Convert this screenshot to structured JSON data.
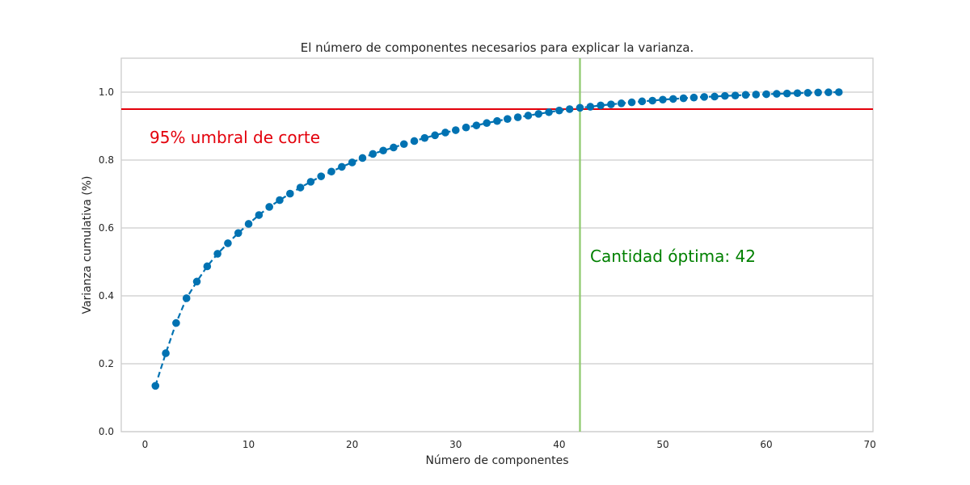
{
  "chart_data": {
    "type": "line",
    "title": "El número de componentes necesarios para explicar la varianza.",
    "xlabel": "Número de componentes",
    "ylabel": "Varianza cumulativa (%)",
    "xlim": [
      -2.3,
      70.3
    ],
    "ylim": [
      0.0,
      1.1
    ],
    "xticks": [
      0,
      10,
      20,
      30,
      40,
      50,
      60,
      70
    ],
    "yticks": [
      0.0,
      0.2,
      0.4,
      0.6,
      0.8,
      1.0
    ],
    "xtick_labels": [
      "0",
      "10",
      "20",
      "30",
      "40",
      "50",
      "60",
      "70"
    ],
    "ytick_labels": [
      "0.0",
      "0.2",
      "0.4",
      "0.6",
      "0.8",
      "1.0"
    ],
    "grid": "horizontal",
    "series": [
      {
        "color": "#0072B2",
        "line_style": "dashed",
        "marker": "circle",
        "x": [
          1,
          2,
          3,
          4,
          5,
          6,
          7,
          8,
          9,
          10,
          11,
          12,
          13,
          14,
          15,
          16,
          17,
          18,
          19,
          20,
          21,
          22,
          23,
          24,
          25,
          26,
          27,
          28,
          29,
          30,
          31,
          32,
          33,
          34,
          35,
          36,
          37,
          38,
          39,
          40,
          41,
          42,
          43,
          44,
          45,
          46,
          47,
          48,
          49,
          50,
          51,
          52,
          53,
          54,
          55,
          56,
          57,
          58,
          59,
          60,
          61,
          62,
          63,
          64,
          65,
          66,
          67
        ],
        "y": [
          0.135,
          0.231,
          0.32,
          0.393,
          0.442,
          0.487,
          0.524,
          0.555,
          0.585,
          0.612,
          0.638,
          0.662,
          0.682,
          0.701,
          0.719,
          0.736,
          0.752,
          0.766,
          0.78,
          0.793,
          0.806,
          0.818,
          0.828,
          0.837,
          0.847,
          0.856,
          0.865,
          0.873,
          0.881,
          0.888,
          0.896,
          0.902,
          0.909,
          0.915,
          0.921,
          0.926,
          0.931,
          0.936,
          0.941,
          0.946,
          0.95,
          0.954,
          0.957,
          0.961,
          0.964,
          0.967,
          0.97,
          0.973,
          0.975,
          0.978,
          0.98,
          0.982,
          0.984,
          0.986,
          0.987,
          0.989,
          0.99,
          0.992,
          0.993,
          0.994,
          0.995,
          0.996,
          0.997,
          0.998,
          0.999,
          0.9995,
          1.0
        ]
      }
    ],
    "threshold": {
      "y": 0.95,
      "color": "#E3000B",
      "label": "95% umbral de corte"
    },
    "optimal": {
      "x": 42,
      "color": "#8DC86C",
      "text_color": "#008000",
      "label": "Cantidad óptima: 42"
    }
  }
}
